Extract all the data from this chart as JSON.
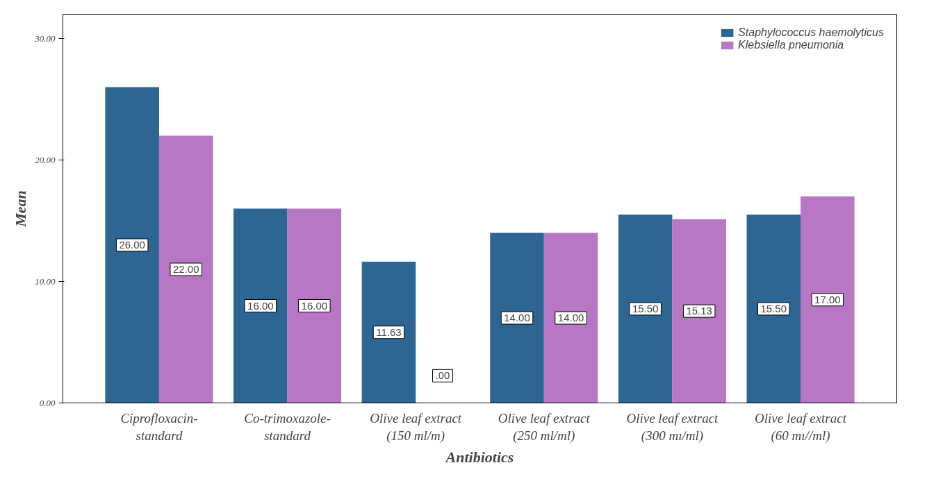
{
  "chart_data": {
    "type": "bar",
    "xlabel": "Antibiotics",
    "ylabel": "Mean",
    "categories": [
      "Ciprofloxacin-\nstandard",
      "Co-trimoxazole-\nstandard",
      "Olive leaf extract\n(150 ml/m)",
      "Olive leaf extract\n(250 ml/ml)",
      "Olive leaf extract\n(300 mı/ml)",
      "Olive leaf extract\n(60 mı//ml)"
    ],
    "series": [
      {
        "name": "Staphylococcus haemolyticus",
        "color": "#2d6593",
        "values": [
          26.0,
          16.0,
          11.63,
          14.0,
          15.5,
          15.5
        ]
      },
      {
        "name": "Klebsiella pneumonia",
        "color": "#b877c4",
        "values": [
          22.0,
          16.0,
          0.0,
          14.0,
          15.13,
          17.0
        ]
      }
    ],
    "value_labels": [
      [
        "26.00",
        "16.00",
        "11.63",
        "14.00",
        "15.50",
        "15.50"
      ],
      [
        "22.00",
        "16.00",
        ".00",
        "14.00",
        "15.13",
        "17.00"
      ]
    ],
    "ylim": [
      0,
      32
    ],
    "yticks": [
      {
        "value": 0,
        "label": "0.00"
      },
      {
        "value": 10,
        "label": "10.00"
      },
      {
        "value": 20,
        "label": "20.00"
      },
      {
        "value": 30,
        "label": "30.00"
      }
    ],
    "grid": false,
    "legend": "top right"
  }
}
